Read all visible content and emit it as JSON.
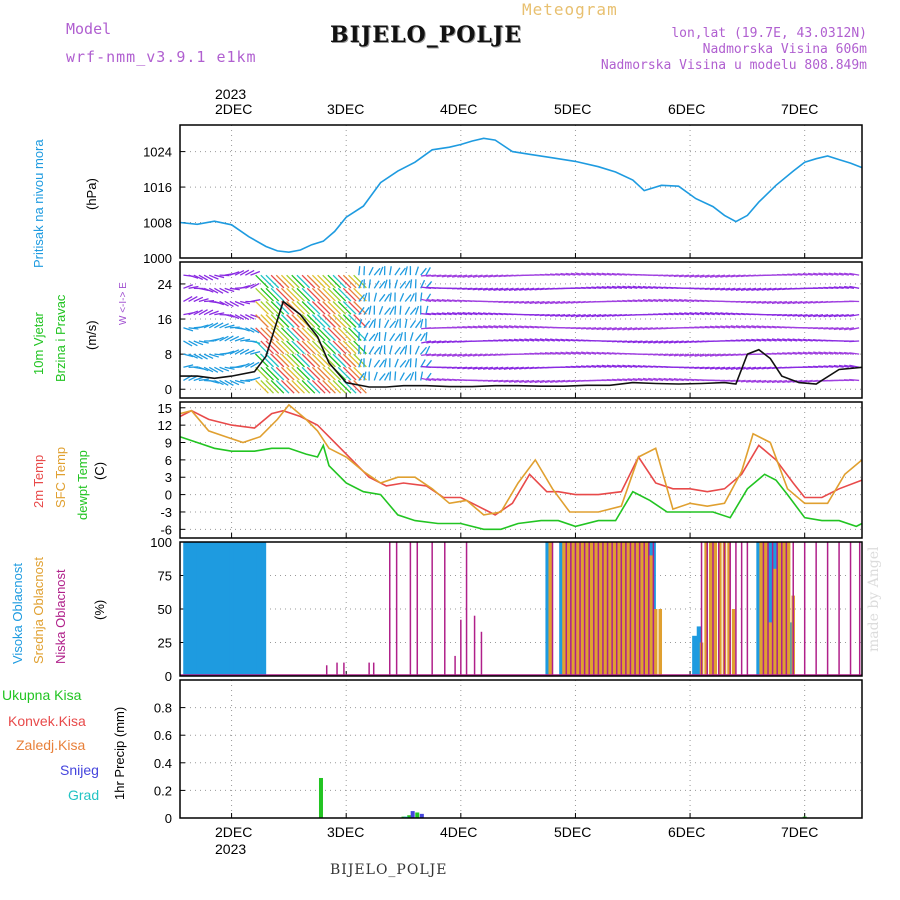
{
  "header": {
    "model_label": "Model",
    "model_name": "wrf-nmm_v3.9.1 e1km",
    "meteogram_label": "Meteogram",
    "station": "BIJELO_POLJE",
    "lonlat": "lon,lat (19.7E, 43.0312N)",
    "elevation": "Nadmorska Visina 606m",
    "model_elevation": "Nadmorska Visina u modelu 808.849m"
  },
  "footer": {
    "station": "BIJELO_POLJE",
    "watermark": "made by Angel"
  },
  "colors": {
    "pressure": "#1e9be0",
    "temp2m": "#e84a4a",
    "sfc": "#e0a030",
    "dewpt": "#22c422",
    "high_cloud": "#1e9be0",
    "mid_cloud": "#e0a030",
    "low_cloud": "#b0208a",
    "total_precip": "#22c422",
    "conv_precip": "#e84a4a",
    "frz_precip": "#e8803a",
    "snow": "#4444dd",
    "hail": "#22c4c4",
    "wind_label": "#22c422",
    "arrows": "#8a2be2"
  },
  "top_axis": {
    "year": "2023",
    "days": [
      "2DEC",
      "3DEC",
      "4DEC",
      "5DEC",
      "6DEC",
      "7DEC"
    ]
  },
  "bottom_axis": {
    "year": "2023",
    "days": [
      "2DEC",
      "3DEC",
      "4DEC",
      "5DEC",
      "6DEC",
      "7DEC"
    ]
  },
  "panels": {
    "pressure": {
      "title": "Pritisak na nivou mora",
      "unit": "(hPa)"
    },
    "wind": {
      "title1": "10m Vjetar",
      "title2": "Brzina i Pravac",
      "unit": "(m/s)",
      "compass": "W <-I-> E"
    },
    "temp": {
      "title1": "2m Temp",
      "title2": "SFC Temp",
      "title3": "dewpt Temp",
      "unit": "(C)"
    },
    "cloud": {
      "title1": "Visoka Oblacnost",
      "title2": "Srednja Oblacnost",
      "title3": "Niska Oblacnost",
      "unit": "(%)"
    },
    "precip": {
      "legend": [
        "Ukupna Kisa",
        "Konvek.Kisa",
        "Zaledj.Kisa",
        "Snijeg",
        "Grad"
      ],
      "unit": "1hr Precip (mm)"
    }
  },
  "chart_data": [
    {
      "type": "line",
      "panel": "pressure",
      "ylabel": "(hPa)",
      "ylim": [
        1000,
        1030
      ],
      "yticks": [
        1000,
        1008,
        1016,
        1024
      ],
      "xlim": [
        1.55,
        7.5
      ],
      "series": [
        {
          "name": "Pritisak na nivou mora",
          "x": [
            1.55,
            1.7,
            1.85,
            2.0,
            2.15,
            2.3,
            2.4,
            2.5,
            2.6,
            2.7,
            2.8,
            2.9,
            3.0,
            3.15,
            3.3,
            3.45,
            3.6,
            3.75,
            3.9,
            4.0,
            4.1,
            4.2,
            4.3,
            4.45,
            4.6,
            4.8,
            5.0,
            5.2,
            5.35,
            5.5,
            5.6,
            5.75,
            5.9,
            6.05,
            6.2,
            6.3,
            6.4,
            6.5,
            6.6,
            6.75,
            6.9,
            7.0,
            7.1,
            7.2,
            7.3,
            7.4,
            7.5
          ],
          "y": [
            1008,
            1007.6,
            1008.3,
            1007.5,
            1004.8,
            1002.6,
            1001.6,
            1001.3,
            1001.8,
            1003,
            1003.8,
            1006,
            1009.2,
            1011.7,
            1017,
            1019.6,
            1021.6,
            1024.4,
            1025,
            1025.6,
            1026.4,
            1027,
            1026.6,
            1024,
            1023.4,
            1022.6,
            1021.8,
            1020.6,
            1019.4,
            1017.6,
            1015.2,
            1016.4,
            1016.2,
            1013.4,
            1011.6,
            1009.6,
            1008.2,
            1009.6,
            1012.6,
            1016.4,
            1019.6,
            1021.6,
            1022.4,
            1023,
            1022.2,
            1021.4,
            1020.4
          ]
        }
      ]
    },
    {
      "type": "line",
      "panel": "wind",
      "ylabel": "(m/s)",
      "ylim": [
        -2,
        29
      ],
      "yticks": [
        0,
        8,
        16,
        24
      ],
      "xlim": [
        1.55,
        7.5
      ],
      "series": [
        {
          "name": "10m Vjetar",
          "x": [
            1.55,
            1.7,
            1.85,
            2.0,
            2.2,
            2.3,
            2.45,
            2.6,
            2.75,
            2.85,
            3.0,
            3.2,
            3.35,
            3.5,
            3.7,
            3.9,
            4.1,
            4.3,
            4.5,
            4.7,
            4.9,
            5.1,
            5.3,
            5.5,
            5.7,
            5.9,
            6.1,
            6.3,
            6.4,
            6.5,
            6.6,
            6.7,
            6.8,
            6.95,
            7.1,
            7.3,
            7.5
          ],
          "y": [
            3,
            3,
            2.5,
            3,
            4,
            7.5,
            20,
            17,
            12,
            6,
            1.5,
            0.5,
            0.5,
            0.8,
            0.8,
            0.6,
            0.6,
            0.8,
            0.8,
            0.7,
            0.7,
            0.9,
            0.9,
            1.5,
            1.3,
            1.2,
            1.3,
            1.5,
            1.2,
            8,
            9,
            7,
            3,
            1.5,
            1.2,
            4.5,
            5
          ]
        }
      ]
    },
    {
      "type": "line",
      "panel": "temp",
      "ylabel": "(C)",
      "ylim": [
        -7.5,
        16
      ],
      "yticks": [
        -6,
        -3,
        0,
        3,
        6,
        9,
        12,
        15
      ],
      "xlim": [
        1.55,
        7.5
      ],
      "series": [
        {
          "name": "2m Temp",
          "x": [
            1.55,
            1.65,
            1.8,
            2.0,
            2.2,
            2.35,
            2.45,
            2.6,
            2.75,
            2.85,
            2.95,
            3.1,
            3.2,
            3.35,
            3.5,
            3.7,
            3.85,
            4.0,
            4.15,
            4.3,
            4.45,
            4.6,
            4.75,
            4.85,
            5.0,
            5.2,
            5.4,
            5.55,
            5.7,
            5.85,
            6.0,
            6.15,
            6.3,
            6.45,
            6.6,
            6.75,
            6.9,
            7.0,
            7.15,
            7.3,
            7.5
          ],
          "y": [
            13.5,
            14.5,
            13,
            12,
            11.5,
            14,
            14.5,
            13.5,
            12,
            10,
            8,
            5,
            3,
            1.5,
            2,
            1.5,
            -0.5,
            -0.5,
            -2,
            -3.5,
            -1.5,
            3.5,
            0.5,
            0.5,
            0,
            0,
            0.5,
            6.5,
            2,
            1,
            1,
            0.5,
            1,
            3.5,
            8.5,
            6,
            2,
            -0.5,
            -0.5,
            1,
            2.5
          ]
        },
        {
          "name": "SFC Temp",
          "x": [
            1.55,
            1.65,
            1.8,
            1.95,
            2.1,
            2.25,
            2.4,
            2.5,
            2.65,
            2.75,
            2.85,
            3.0,
            3.15,
            3.3,
            3.45,
            3.6,
            3.75,
            3.9,
            4.05,
            4.2,
            4.35,
            4.5,
            4.65,
            4.8,
            4.95,
            5.2,
            5.4,
            5.55,
            5.7,
            5.85,
            6.0,
            6.15,
            6.3,
            6.45,
            6.55,
            6.7,
            6.85,
            7.0,
            7.2,
            7.35,
            7.5
          ],
          "y": [
            14,
            14.5,
            11,
            10,
            9,
            10,
            13,
            15.5,
            13,
            11,
            8,
            6.5,
            4,
            2,
            3,
            3,
            1,
            -1.5,
            -1,
            -3.5,
            -3,
            2,
            6,
            1,
            -3,
            -3,
            -2,
            6.5,
            8,
            -2.5,
            -1.5,
            -2,
            -1.5,
            4,
            10.5,
            9,
            1,
            -1.5,
            -1.5,
            3.5,
            6
          ]
        },
        {
          "name": "dewpt Temp",
          "x": [
            1.55,
            1.7,
            1.85,
            2.0,
            2.2,
            2.35,
            2.5,
            2.65,
            2.75,
            2.8,
            2.85,
            3.0,
            3.15,
            3.3,
            3.45,
            3.6,
            3.8,
            4.0,
            4.2,
            4.35,
            4.5,
            4.7,
            4.85,
            5.0,
            5.2,
            5.35,
            5.5,
            5.65,
            5.8,
            6.0,
            6.2,
            6.35,
            6.5,
            6.65,
            6.75,
            6.85,
            7.0,
            7.15,
            7.3,
            7.45,
            7.5
          ],
          "y": [
            10,
            9,
            8,
            7.5,
            7.5,
            8,
            8,
            7,
            6.5,
            8.5,
            5,
            2,
            0.5,
            0,
            -3.5,
            -4.5,
            -5,
            -5,
            -6,
            -6,
            -5,
            -4.5,
            -4.5,
            -5.5,
            -4.5,
            -4.5,
            0.5,
            -1,
            -3,
            -3,
            -3,
            -4,
            1,
            3.5,
            2.5,
            0,
            -4,
            -4.5,
            -4.5,
            -5.5,
            -5
          ]
        }
      ]
    },
    {
      "type": "bar",
      "panel": "cloud",
      "ylabel": "(%)",
      "ylim": [
        0,
        100
      ],
      "yticks": [
        0,
        25,
        50,
        75,
        100
      ],
      "xlim": [
        1.55,
        7.5
      ],
      "series": [
        {
          "name": "Visoka Oblacnost",
          "x": [
            1.6,
            1.64,
            1.68,
            1.72,
            1.76,
            1.8,
            1.84,
            1.88,
            1.92,
            1.96,
            2.0,
            2.04,
            2.08,
            2.12,
            2.16,
            2.2,
            2.24,
            2.28,
            4.76,
            4.88,
            4.92,
            4.96,
            5.0,
            5.04,
            5.08,
            5.12,
            5.16,
            5.2,
            5.24,
            5.28,
            5.32,
            5.36,
            5.4,
            5.44,
            5.48,
            5.52,
            5.56,
            5.6,
            5.64,
            5.68,
            6.04,
            6.08,
            6.6,
            6.64,
            6.68,
            6.72,
            6.76,
            6.8,
            6.84,
            6.88
          ],
          "y": [
            100,
            100,
            100,
            100,
            100,
            100,
            100,
            100,
            100,
            100,
            100,
            100,
            100,
            100,
            100,
            100,
            100,
            100,
            100,
            100,
            100,
            100,
            100,
            100,
            100,
            100,
            100,
            100,
            100,
            100,
            100,
            100,
            100,
            100,
            100,
            100,
            100,
            100,
            100,
            100,
            30,
            37,
            100,
            100,
            100,
            100,
            100,
            100,
            100,
            40
          ]
        },
        {
          "name": "Srednja Oblacnost",
          "x": [
            4.78,
            4.9,
            4.94,
            4.98,
            5.02,
            5.06,
            5.1,
            5.14,
            5.18,
            5.22,
            5.26,
            5.3,
            5.34,
            5.38,
            5.42,
            5.46,
            5.5,
            5.54,
            5.58,
            5.62,
            5.66,
            5.7,
            5.74,
            6.1,
            6.14,
            6.18,
            6.22,
            6.26,
            6.3,
            6.34,
            6.38,
            6.62,
            6.66,
            6.7,
            6.74,
            6.78,
            6.82,
            6.86,
            6.9
          ],
          "y": [
            100,
            100,
            100,
            100,
            100,
            100,
            100,
            100,
            100,
            100,
            100,
            100,
            100,
            100,
            100,
            100,
            100,
            100,
            100,
            100,
            90,
            50,
            50,
            25,
            100,
            100,
            100,
            100,
            100,
            100,
            50,
            100,
            100,
            40,
            80,
            100,
            100,
            100,
            60
          ]
        },
        {
          "name": "Niska Oblacnost",
          "x": [
            2.83,
            2.92,
            2.98,
            3.2,
            3.24,
            3.38,
            3.44,
            3.56,
            3.62,
            3.75,
            3.86,
            3.95,
            4.0,
            4.05,
            4.12,
            4.18,
            4.8,
            4.92,
            4.96,
            5.0,
            5.04,
            5.08,
            5.12,
            5.16,
            5.2,
            5.24,
            5.28,
            5.32,
            5.36,
            5.4,
            5.44,
            5.48,
            5.52,
            5.56,
            5.6,
            5.64,
            5.68,
            6.1,
            6.15,
            6.2,
            6.25,
            6.3,
            6.35,
            6.4,
            6.45,
            6.5,
            6.64,
            6.68,
            6.72,
            6.76,
            6.8,
            6.84,
            6.9,
            7.0,
            7.1,
            7.2,
            7.3,
            7.4,
            7.48
          ],
          "y": [
            8,
            10,
            10,
            10,
            10,
            100,
            100,
            100,
            100,
            100,
            100,
            15,
            42,
            100,
            45,
            33,
            100,
            100,
            100,
            100,
            100,
            100,
            100,
            100,
            100,
            100,
            100,
            100,
            100,
            100,
            100,
            100,
            100,
            100,
            100,
            100,
            100,
            100,
            100,
            100,
            100,
            100,
            100,
            100,
            100,
            100,
            100,
            100,
            100,
            100,
            100,
            100,
            100,
            100,
            100,
            100,
            100,
            100,
            100
          ]
        }
      ]
    },
    {
      "type": "bar",
      "panel": "precip",
      "ylabel": "1hr Precip (mm)",
      "ylim": [
        0,
        1.0
      ],
      "yticks": [
        0,
        0.2,
        0.4,
        0.6,
        0.8
      ],
      "xlim": [
        1.55,
        7.5
      ],
      "series": [
        {
          "name": "Ukupna Kisa",
          "x": [
            2.78,
            3.5,
            3.55,
            3.62,
            7.0
          ],
          "y": [
            0.29,
            0.01,
            0.02,
            0.04,
            0.01
          ]
        },
        {
          "name": "Snijeg",
          "x": [
            3.58,
            3.66
          ],
          "y": [
            0.05,
            0.03
          ]
        },
        {
          "name": "Grad",
          "x": [
            3.52
          ],
          "y": [
            0.01
          ]
        }
      ]
    }
  ]
}
